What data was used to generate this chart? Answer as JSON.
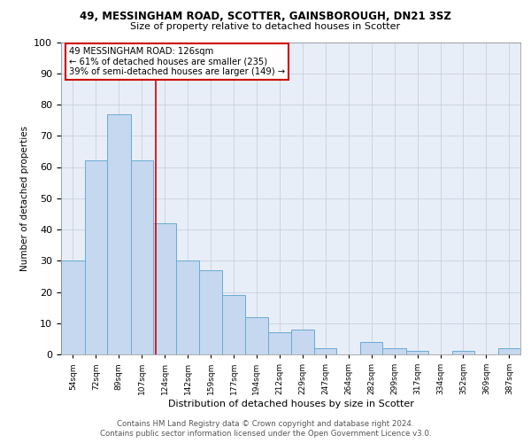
{
  "title_line1": "49, MESSINGHAM ROAD, SCOTTER, GAINSBOROUGH, DN21 3SZ",
  "title_line2": "Size of property relative to detached houses in Scotter",
  "xlabel": "Distribution of detached houses by size in Scotter",
  "ylabel": "Number of detached properties",
  "footer_line1": "Contains HM Land Registry data © Crown copyright and database right 2024.",
  "footer_line2": "Contains public sector information licensed under the Open Government Licence v3.0.",
  "annotation_line1": "49 MESSINGHAM ROAD: 126sqm",
  "annotation_line2": "← 61% of detached houses are smaller (235)",
  "annotation_line3": "39% of semi-detached houses are larger (149) →",
  "property_size": 126,
  "bar_edges": [
    54,
    72,
    89,
    107,
    124,
    142,
    159,
    177,
    194,
    212,
    229,
    247,
    264,
    282,
    299,
    317,
    334,
    352,
    369,
    387,
    404
  ],
  "bar_heights": [
    30,
    62,
    77,
    62,
    42,
    30,
    27,
    19,
    12,
    7,
    8,
    2,
    0,
    4,
    2,
    1,
    0,
    1,
    0,
    2
  ],
  "bar_color": "#c5d8ef",
  "bar_edge_color": "#6aaad4",
  "vline_color": "#cc0000",
  "vline_x": 126,
  "grid_color": "#c8d0de",
  "bg_color": "#e8eef8",
  "annotation_box_edgecolor": "#cc0000",
  "annotation_box_facecolor": "#ffffff",
  "ylim": [
    0,
    100
  ],
  "xlim": [
    54,
    404
  ],
  "fig_width": 6.0,
  "fig_height": 5.0,
  "dpi": 100
}
